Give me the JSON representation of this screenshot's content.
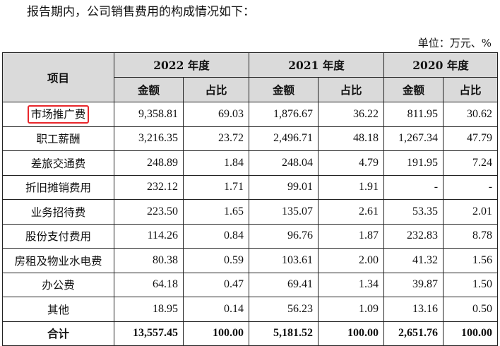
{
  "intro_text": "报告期内，公司销售费用的构成情况如下：",
  "unit_text": "单位：万元、%",
  "table": {
    "item_header": "项目",
    "years": [
      "2022 年度",
      "2021 年度",
      "2020 年度"
    ],
    "amount_label": "金额",
    "ratio_label": "占比",
    "rows": [
      {
        "label": "市场推广费",
        "highlighted": true,
        "values": [
          "9,358.81",
          "69.03",
          "1,876.67",
          "36.22",
          "811.95",
          "30.62"
        ]
      },
      {
        "label": "职工薪酬",
        "values": [
          "3,216.35",
          "23.72",
          "2,496.71",
          "48.18",
          "1,267.34",
          "47.79"
        ]
      },
      {
        "label": "差旅交通费",
        "values": [
          "248.89",
          "1.84",
          "248.04",
          "4.79",
          "191.95",
          "7.24"
        ]
      },
      {
        "label": "折旧摊销费用",
        "values": [
          "232.12",
          "1.71",
          "99.01",
          "1.91",
          "-",
          "-"
        ]
      },
      {
        "label": "业务招待费",
        "values": [
          "223.50",
          "1.65",
          "135.07",
          "2.61",
          "53.35",
          "2.01"
        ]
      },
      {
        "label": "股份支付费用",
        "values": [
          "114.26",
          "0.84",
          "96.76",
          "1.87",
          "232.83",
          "8.78"
        ]
      },
      {
        "label": "房租及物业水电费",
        "values": [
          "80.38",
          "0.59",
          "103.61",
          "2.00",
          "41.32",
          "1.56"
        ]
      },
      {
        "label": "办公费",
        "values": [
          "64.18",
          "0.47",
          "69.41",
          "1.34",
          "39.87",
          "1.50"
        ]
      },
      {
        "label": "其他",
        "values": [
          "18.95",
          "0.14",
          "56.23",
          "1.09",
          "13.16",
          "0.50"
        ]
      }
    ],
    "total": {
      "label": "合计",
      "values": [
        "13,557.45",
        "100.00",
        "5,181.52",
        "100.00",
        "2,651.76",
        "100.00"
      ]
    }
  },
  "colors": {
    "header_background": "#dadada",
    "highlight_border": "#e8262b",
    "rule": "#222222"
  }
}
